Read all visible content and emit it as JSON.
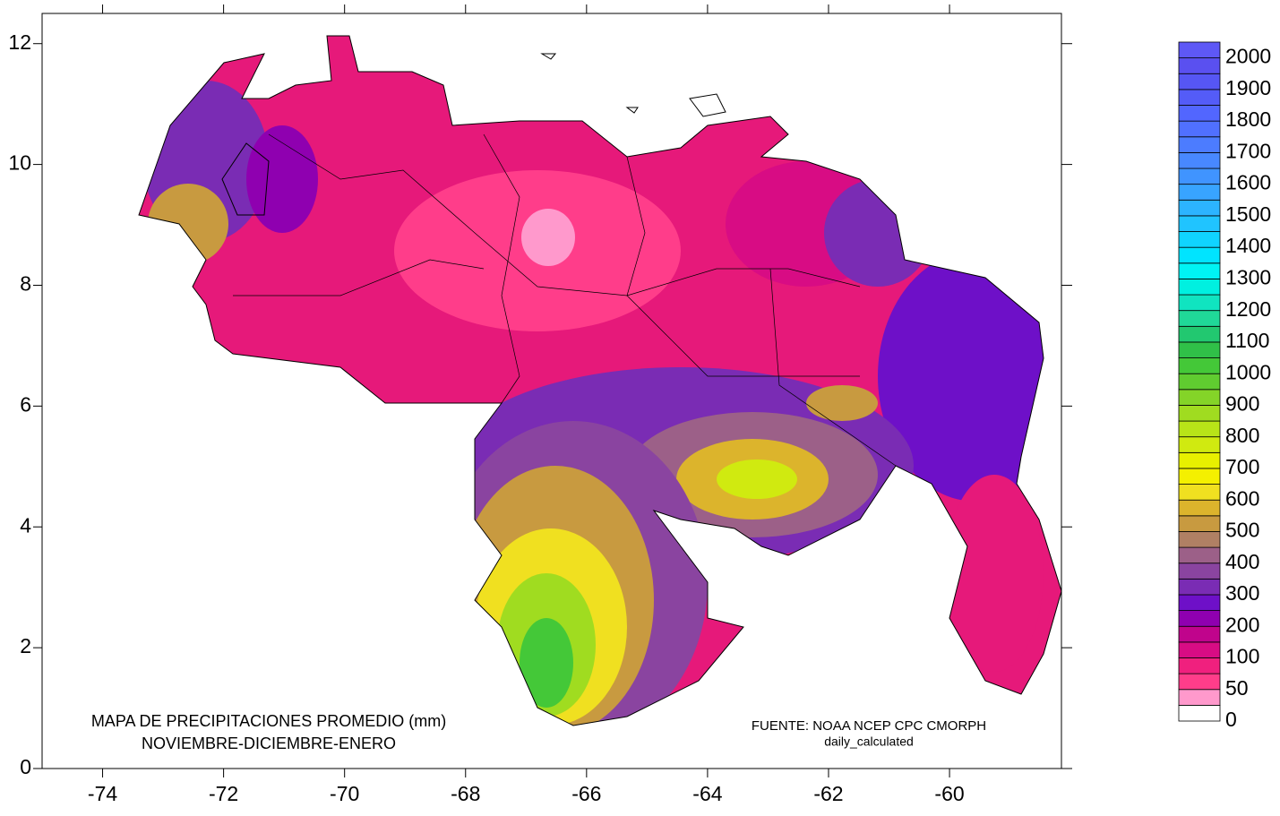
{
  "map": {
    "title": [
      "MAPA DE PRECIPITACIONES PROMEDIO (mm)",
      "NOVIEMBRE-DICIEMBRE-ENERO"
    ],
    "source": [
      "FUENTE: NOAA NCEP CPC CMORPH",
      "daily_calculated"
    ],
    "xlim": [
      -75,
      -58.15
    ],
    "ylim": [
      0,
      12.5
    ],
    "xticks": [
      -74,
      -72,
      -70,
      -68,
      -66,
      -64,
      -62,
      -60
    ],
    "yticks": [
      0,
      2,
      4,
      6,
      8,
      10,
      12
    ],
    "legend": {
      "labels": [
        0,
        50,
        100,
        200,
        300,
        400,
        500,
        600,
        700,
        800,
        900,
        1000,
        1100,
        1200,
        1300,
        1400,
        1500,
        1600,
        1700,
        1800,
        1900,
        2000
      ],
      "colors": [
        "#ffffff",
        "#ff99cc",
        "#ff3d8a",
        "#f0207e",
        "#d80c84",
        "#c0048c",
        "#8f00b0",
        "#6e10c8",
        "#7a2cb4",
        "#8a44a0",
        "#9c6088",
        "#b08064",
        "#c89a40",
        "#dcb42c",
        "#f0e020",
        "#f4f000",
        "#e8f000",
        "#d0ea10",
        "#b8e418",
        "#a0dc20",
        "#84d428",
        "#60cc30",
        "#44c838",
        "#30c048",
        "#22c870",
        "#20d898",
        "#10e4c0",
        "#00f0e0",
        "#00f4f4",
        "#00e4ff",
        "#10d4ff",
        "#20c4ff",
        "#2cb4ff",
        "#38a4ff",
        "#4094ff",
        "#4888ff",
        "#4c7cff",
        "#5070ff",
        "#5266ff",
        "#545cf8",
        "#5656f4",
        "#5a50f0",
        "#5e58f6"
      ]
    }
  }
}
